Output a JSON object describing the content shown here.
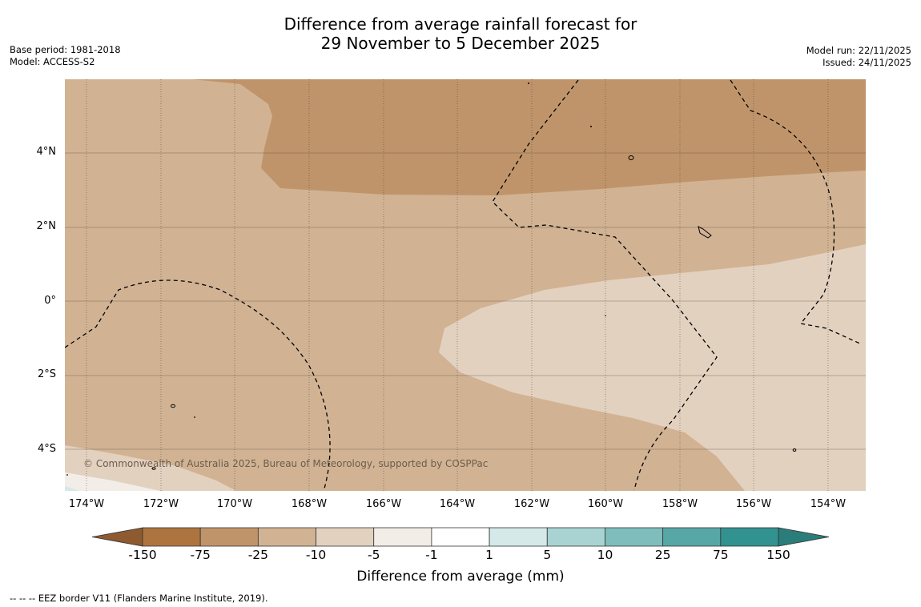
{
  "title": {
    "line1": "Difference from average rainfall forecast for",
    "line2": "29 November to 5 December 2025"
  },
  "meta_left": {
    "base_period": "Base period: 1981-2018",
    "model": "Model: ACCESS-S2"
  },
  "meta_right": {
    "model_run": "Model run: 22/11/2025",
    "issued": "Issued: 24/11/2025"
  },
  "map": {
    "lat_labels": [
      "4°N",
      "2°N",
      "0°",
      "2°S",
      "4°S"
    ],
    "lon_labels": [
      "174°W",
      "172°W",
      "170°W",
      "168°W",
      "166°W",
      "164°W",
      "162°W",
      "160°W",
      "158°W",
      "156°W",
      "154°W"
    ],
    "copyright": "© Commonwealth of Australia 2025, Bureau of Meteorology, supported by COSPPac",
    "category_colors": {
      "minus_75_to_minus_25": "#c0946a",
      "minus_25_to_minus_10": "#d1b394",
      "minus_10_to_minus_5": "#e3d1c0",
      "minus_5_to_minus_1": "#f3ede8"
    }
  },
  "colorbar": {
    "labels": [
      "-150",
      "-75",
      "-25",
      "-10",
      "-5",
      "-1",
      "1",
      "5",
      "10",
      "25",
      "75",
      "150"
    ],
    "colors": [
      "#ad7440",
      "#c0946a",
      "#d1b394",
      "#e3d1c0",
      "#f3ede8",
      "#ffffff",
      "#d4e9e8",
      "#a9d3d3",
      "#7ebdbc",
      "#57a7a6",
      "#32928f"
    ],
    "extend_low_color": "#8e5a30",
    "extend_high_color": "#2a7d7a",
    "title": "Difference from average (mm)"
  },
  "footnote": "--  --  -- EEZ border V11 (Flanders Marine Institute, 2019)."
}
